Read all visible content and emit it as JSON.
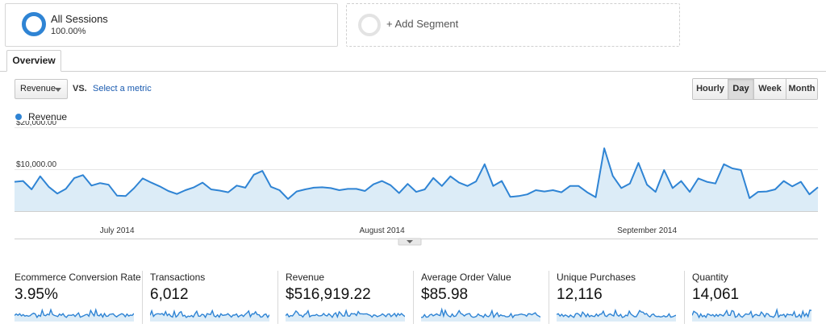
{
  "segments": {
    "active": {
      "title": "All Sessions",
      "percent": "100.00%"
    },
    "add_label": "+ Add Segment"
  },
  "tabs": [
    {
      "label": "Overview"
    }
  ],
  "metric_selector": {
    "selected": "Revenue",
    "vs_label": "VS.",
    "select_link": "Select a metric"
  },
  "granularity": {
    "options": [
      "Hourly",
      "Day",
      "Week",
      "Month"
    ],
    "selected": "Day"
  },
  "legend": {
    "label": "Revenue",
    "color": "#2f84d4"
  },
  "colors": {
    "line": "#2f84d4",
    "fill": "#dcecf7",
    "link": "#1a5bb0"
  },
  "chart_data": {
    "type": "area",
    "title": "",
    "xlabel": "",
    "ylabel": "",
    "y_tick_labels": [
      "$20,000.00",
      "$10,000.00"
    ],
    "y_tick_values": [
      20000,
      10000
    ],
    "ylim": [
      0,
      20000
    ],
    "grid": true,
    "legend": "top-left",
    "month_labels": [
      "July 2014",
      "August 2014",
      "September 2014"
    ],
    "month_label_index": [
      12,
      43,
      74
    ],
    "series": [
      {
        "name": "Revenue",
        "values": [
          7000,
          7200,
          5200,
          8300,
          5800,
          4200,
          5300,
          7900,
          8600,
          6100,
          6700,
          6300,
          3700,
          3600,
          5500,
          7800,
          6800,
          5900,
          4800,
          4100,
          5000,
          5700,
          6800,
          5200,
          4900,
          4500,
          6100,
          5600,
          8700,
          9600,
          5800,
          5000,
          2900,
          4700,
          5200,
          5600,
          5700,
          5500,
          5000,
          5300,
          5300,
          4800,
          6400,
          7200,
          6200,
          4300,
          6500,
          4600,
          5200,
          7900,
          6000,
          8300,
          6800,
          6000,
          7100,
          11200,
          6000,
          7200,
          3400,
          3600,
          4000,
          5000,
          4700,
          5000,
          4500,
          6000,
          6000,
          4500,
          3300,
          15000,
          8400,
          5500,
          6600,
          11500,
          6300,
          4600,
          9800,
          5500,
          7200,
          4600,
          7800,
          7000,
          6600,
          11200,
          10200,
          9800,
          3100,
          4600,
          4700,
          5200,
          7200,
          5900,
          7000,
          4000,
          5700
        ]
      }
    ]
  },
  "scorecards": [
    {
      "title": "Ecommerce Conversion Rate",
      "value": "3.95%"
    },
    {
      "title": "Transactions",
      "value": "6,012"
    },
    {
      "title": "Revenue",
      "value": "$516,919.22"
    },
    {
      "title": "Average Order Value",
      "value": "$85.98"
    },
    {
      "title": "Unique Purchases",
      "value": "12,116"
    },
    {
      "title": "Quantity",
      "value": "14,061"
    }
  ]
}
